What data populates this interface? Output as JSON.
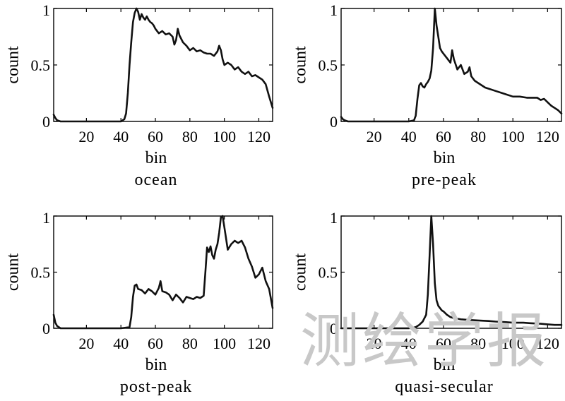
{
  "watermark": "测绘学报",
  "chart_data": [
    {
      "type": "line",
      "subtitle": "ocean",
      "xlabel": "bin",
      "ylabel": "count",
      "xlim": [
        1,
        128
      ],
      "ylim": [
        0,
        1
      ],
      "xticks": [
        20,
        40,
        60,
        80,
        100,
        120
      ],
      "xtick_labels": [
        "20",
        "40",
        "60",
        "80",
        "100",
        "120"
      ],
      "yticks": [
        0,
        0.5,
        1
      ],
      "ytick_labels": [
        "0",
        "0.5",
        "1"
      ],
      "grid": false,
      "x": [
        1,
        2,
        3,
        5,
        10,
        20,
        30,
        40,
        42,
        43,
        44,
        45,
        46,
        47,
        48,
        49,
        50,
        51,
        52,
        53,
        54,
        55,
        56,
        57,
        58,
        59,
        60,
        62,
        64,
        66,
        68,
        70,
        71,
        72,
        73,
        74,
        76,
        78,
        80,
        82,
        84,
        86,
        88,
        90,
        92,
        94,
        96,
        97,
        98,
        99,
        100,
        102,
        104,
        106,
        108,
        110,
        112,
        114,
        116,
        118,
        120,
        122,
        124,
        126,
        128
      ],
      "y": [
        0.06,
        0.03,
        0.01,
        0.0,
        0.0,
        0.0,
        0.0,
        0.0,
        0.02,
        0.07,
        0.25,
        0.5,
        0.7,
        0.88,
        0.96,
        1.0,
        0.97,
        0.9,
        0.95,
        0.92,
        0.9,
        0.93,
        0.9,
        0.88,
        0.87,
        0.85,
        0.82,
        0.78,
        0.8,
        0.77,
        0.78,
        0.75,
        0.68,
        0.72,
        0.82,
        0.76,
        0.7,
        0.67,
        0.63,
        0.65,
        0.62,
        0.63,
        0.61,
        0.6,
        0.6,
        0.58,
        0.62,
        0.67,
        0.63,
        0.55,
        0.5,
        0.52,
        0.5,
        0.46,
        0.48,
        0.44,
        0.42,
        0.44,
        0.4,
        0.41,
        0.39,
        0.37,
        0.33,
        0.22,
        0.12
      ]
    },
    {
      "type": "line",
      "subtitle": "pre-peak",
      "xlabel": "bin",
      "ylabel": "count",
      "xlim": [
        1,
        128
      ],
      "ylim": [
        0,
        1
      ],
      "xticks": [
        20,
        40,
        60,
        80,
        100,
        120
      ],
      "xtick_labels": [
        "20",
        "40",
        "60",
        "80",
        "100",
        "120"
      ],
      "yticks": [
        0,
        0.5,
        1
      ],
      "ytick_labels": [
        "0",
        "0.5",
        "1"
      ],
      "grid": false,
      "x": [
        1,
        2,
        3,
        5,
        10,
        20,
        30,
        40,
        43,
        44,
        45,
        46,
        47,
        48,
        49,
        50,
        51,
        52,
        53,
        54,
        55,
        56,
        57,
        58,
        59,
        60,
        62,
        64,
        65,
        66,
        68,
        70,
        72,
        74,
        75,
        76,
        78,
        80,
        84,
        88,
        90,
        94,
        96,
        98,
        100,
        104,
        108,
        110,
        114,
        116,
        118,
        120,
        122,
        124,
        126,
        128
      ],
      "y": [
        0.04,
        0.02,
        0.01,
        0.0,
        0.0,
        0.0,
        0.0,
        0.0,
        0.01,
        0.05,
        0.2,
        0.32,
        0.34,
        0.31,
        0.3,
        0.33,
        0.35,
        0.38,
        0.45,
        0.65,
        1.0,
        0.85,
        0.75,
        0.65,
        0.62,
        0.6,
        0.56,
        0.52,
        0.63,
        0.55,
        0.46,
        0.5,
        0.42,
        0.44,
        0.48,
        0.4,
        0.36,
        0.34,
        0.3,
        0.28,
        0.27,
        0.25,
        0.24,
        0.23,
        0.22,
        0.22,
        0.21,
        0.21,
        0.21,
        0.19,
        0.2,
        0.17,
        0.14,
        0.12,
        0.1,
        0.07
      ]
    },
    {
      "type": "line",
      "subtitle": "post-peak",
      "xlabel": "bin",
      "ylabel": "count",
      "xlim": [
        1,
        128
      ],
      "ylim": [
        0,
        1
      ],
      "xticks": [
        20,
        40,
        60,
        80,
        100,
        120
      ],
      "xtick_labels": [
        "20",
        "40",
        "60",
        "80",
        "100",
        "120"
      ],
      "yticks": [
        0,
        0.5,
        1
      ],
      "ytick_labels": [
        "0",
        "0.5",
        "1"
      ],
      "grid": false,
      "x": [
        1,
        2,
        3,
        5,
        10,
        20,
        30,
        40,
        45,
        46,
        47,
        48,
        49,
        50,
        52,
        54,
        56,
        58,
        60,
        62,
        63,
        64,
        66,
        68,
        70,
        72,
        74,
        76,
        78,
        80,
        82,
        84,
        86,
        88,
        89,
        90,
        91,
        92,
        93,
        94,
        95,
        96,
        97,
        98,
        99,
        100,
        102,
        104,
        106,
        108,
        110,
        112,
        114,
        116,
        118,
        120,
        122,
        124,
        126,
        128
      ],
      "y": [
        0.12,
        0.05,
        0.02,
        0.0,
        0.0,
        0.0,
        0.0,
        0.0,
        0.01,
        0.1,
        0.28,
        0.38,
        0.39,
        0.35,
        0.34,
        0.31,
        0.35,
        0.33,
        0.3,
        0.36,
        0.42,
        0.33,
        0.32,
        0.3,
        0.25,
        0.3,
        0.27,
        0.23,
        0.28,
        0.27,
        0.26,
        0.28,
        0.27,
        0.29,
        0.5,
        0.72,
        0.68,
        0.73,
        0.65,
        0.62,
        0.7,
        0.75,
        0.85,
        0.99,
        1.0,
        0.9,
        0.7,
        0.75,
        0.78,
        0.76,
        0.78,
        0.72,
        0.62,
        0.55,
        0.45,
        0.48,
        0.54,
        0.42,
        0.35,
        0.18
      ]
    },
    {
      "type": "line",
      "subtitle": "quasi-secular",
      "xlabel": "bin",
      "ylabel": "count",
      "xlim": [
        1,
        128
      ],
      "ylim": [
        0,
        1
      ],
      "xticks": [
        20,
        40,
        60,
        80,
        100,
        120
      ],
      "xtick_labels": [
        "20",
        "40",
        "60",
        "80",
        "100",
        "120"
      ],
      "yticks": [
        0,
        0.5,
        1
      ],
      "ytick_labels": [
        "0",
        "0.5",
        "1"
      ],
      "grid": false,
      "x": [
        1,
        5,
        10,
        20,
        30,
        40,
        44,
        46,
        48,
        50,
        51,
        52,
        53,
        54,
        55,
        56,
        57,
        58,
        59,
        60,
        62,
        64,
        66,
        70,
        74,
        80,
        86,
        90,
        96,
        100,
        106,
        110,
        116,
        120,
        124,
        128
      ],
      "y": [
        0.0,
        0.0,
        0.0,
        0.0,
        0.0,
        0.0,
        0.01,
        0.03,
        0.06,
        0.12,
        0.3,
        0.65,
        1.0,
        0.75,
        0.4,
        0.25,
        0.2,
        0.18,
        0.16,
        0.15,
        0.12,
        0.1,
        0.09,
        0.08,
        0.075,
        0.07,
        0.065,
        0.06,
        0.055,
        0.05,
        0.05,
        0.045,
        0.04,
        0.035,
        0.03,
        0.03
      ]
    }
  ]
}
